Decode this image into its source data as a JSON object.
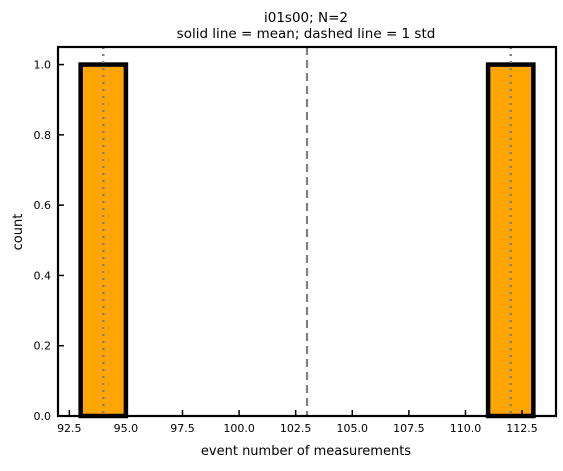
{
  "chart_data": {
    "type": "bar",
    "title": "i01s00; N=2",
    "subtitle": "solid line = mean; dashed line = 1 std",
    "xlabel": "event number of measurements",
    "ylabel": "count",
    "xlim": [
      92.0,
      114.0
    ],
    "ylim": [
      0.0,
      1.05
    ],
    "x_ticks": [
      92.5,
      95.0,
      97.5,
      100.0,
      102.5,
      105.0,
      107.5,
      110.0,
      112.5
    ],
    "x_tick_labels": [
      "92.5",
      "95.0",
      "97.5",
      "100.0",
      "102.5",
      "105.0",
      "107.5",
      "110.0",
      "112.5"
    ],
    "y_ticks": [
      0.0,
      0.2,
      0.4,
      0.6,
      0.8,
      1.0
    ],
    "y_tick_labels": [
      "0.0",
      "0.2",
      "0.4",
      "0.6",
      "0.8",
      "1.0"
    ],
    "bins": [
      {
        "x0": 93.0,
        "x1": 95.0,
        "count": 1
      },
      {
        "x0": 111.0,
        "x1": 113.0,
        "count": 1
      }
    ],
    "mean": 103.0,
    "std_lines": [
      94.0,
      112.0
    ],
    "grid": false,
    "legend": "none",
    "colors": {
      "bar_fill": "#ffa500",
      "bar_edge": "#000000",
      "reference_line": "#808080"
    }
  }
}
